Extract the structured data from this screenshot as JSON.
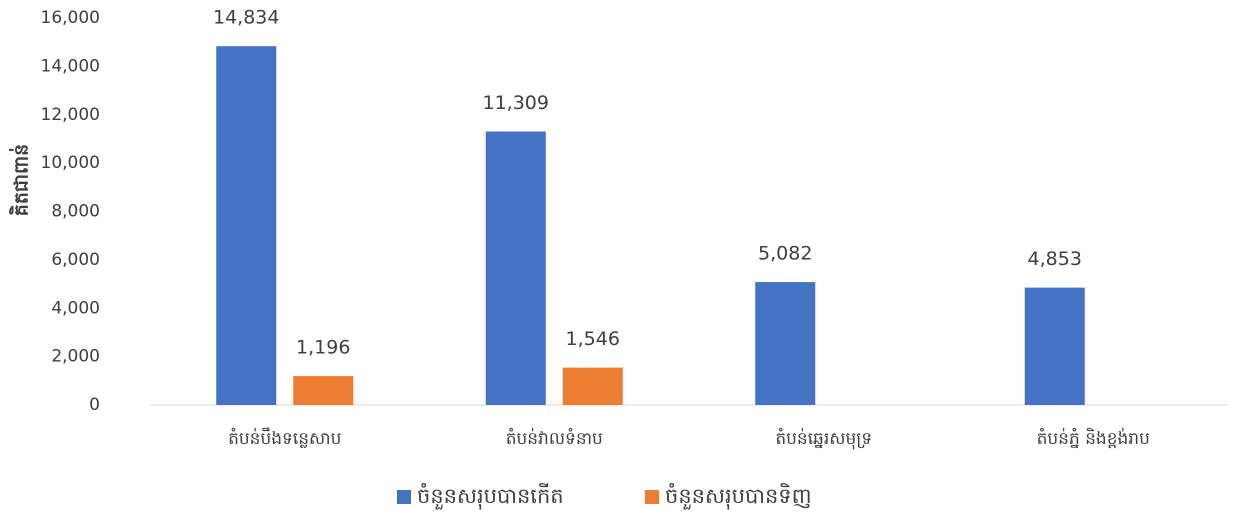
{
  "chart_data": {
    "type": "bar",
    "ylabel": "គិតជាពាន់",
    "categories": [
      "តំបន់បឹងទន្លេសាប",
      "តំបន់វាលទំនាប",
      "តំបន់ឆ្នេរសមុទ្រ",
      "តំបន់ភ្នំ និងខ្ពង់រាប"
    ],
    "series": [
      {
        "name": "ចំនួនសរុបបានកើត",
        "color": "#4472c4",
        "values": [
          14834,
          11309,
          5082,
          4853
        ],
        "value_labels": [
          "14,834",
          "11,309",
          "5,082",
          "4,853"
        ]
      },
      {
        "name": "ចំនួនសរុបបានទិញ",
        "color": "#ed7d31",
        "values": [
          1196,
          1546,
          null,
          null
        ],
        "value_labels": [
          "1,196",
          "1,546",
          null,
          null
        ]
      }
    ],
    "ylim": [
      0,
      16000
    ],
    "yticks": [
      0,
      {
        "value": 2000,
        "label": "2,000"
      },
      {
        "value": 4000,
        "label": "4,000"
      },
      {
        "value": 6000,
        "label": "6,000"
      },
      {
        "value": 8000,
        "label": "8,000"
      },
      {
        "value": 10000,
        "label": "10,000"
      },
      {
        "value": 12000,
        "label": "12,000"
      },
      {
        "value": 14000,
        "label": "14,000"
      },
      {
        "value": 16000,
        "label": "16,000"
      }
    ],
    "grid": false,
    "legend": "bottom"
  }
}
